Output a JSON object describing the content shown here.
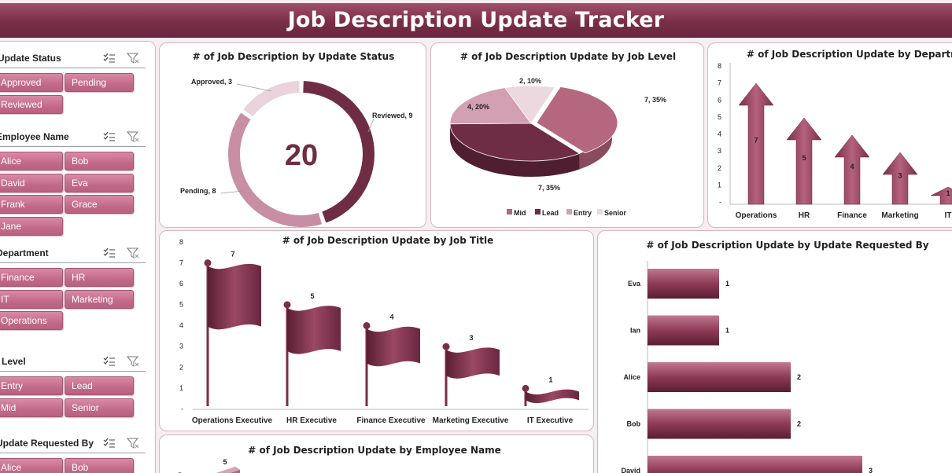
{
  "title": "Job Description Update Tracker",
  "slicers": [
    {
      "label": "Update Status",
      "items": [
        "Approved",
        "Pending",
        "Reviewed"
      ]
    },
    {
      "label": "Employee Name",
      "items": [
        "Alice",
        "Bob",
        "David",
        "Eva",
        "Frank",
        "Grace",
        "Jane"
      ]
    },
    {
      "label": "Department",
      "items": [
        "Finance",
        "HR",
        "IT",
        "Marketing",
        "Operations"
      ]
    },
    {
      "label": "Level",
      "items": [
        "Entry",
        "Lead",
        "Mid",
        "Senior"
      ]
    },
    {
      "label": "Update Requested By",
      "items": [
        "Alice",
        "Bob"
      ]
    }
  ],
  "chart_data": [
    {
      "id": "status",
      "type": "pie",
      "title": "# of Job Description by Update Status",
      "center_value": "20",
      "categories": [
        "Reviewed",
        "Pending",
        "Approved"
      ],
      "values": [
        9,
        8,
        3
      ],
      "labels": [
        "Reviewed, 9",
        "Pending, 8",
        "Approved, 3"
      ],
      "colors": [
        "#6e2d44",
        "#c88ea4",
        "#ead3dc"
      ]
    },
    {
      "id": "level",
      "type": "pie",
      "title": "# of Job Description Update by Job Level",
      "categories": [
        "Mid",
        "Lead",
        "Entry",
        "Senior"
      ],
      "values": [
        7,
        7,
        4,
        2
      ],
      "labels": [
        "7, 35%",
        "7, 35%",
        "4, 20%",
        "2, 10%"
      ],
      "legend": [
        "Mid",
        "Lead",
        "Entry",
        "Senior"
      ],
      "colors": [
        "#b5677f",
        "#6e2d44",
        "#d39fb2",
        "#ecd9e0"
      ]
    },
    {
      "id": "department",
      "type": "bar",
      "title": "# of Job Description Update by Department",
      "categories": [
        "Operations",
        "HR",
        "Finance",
        "Marketing",
        "IT"
      ],
      "values": [
        7,
        5,
        4,
        3,
        1
      ],
      "yticks": [
        "8",
        "7",
        "6",
        "5",
        "4",
        "3",
        "2",
        "1",
        "-"
      ],
      "ylim": [
        0,
        8
      ]
    },
    {
      "id": "jobtitle",
      "type": "bar",
      "title": "# of Job Description Update by Job Title",
      "categories": [
        "Operations Executive",
        "HR Executive",
        "Finance Executive",
        "Marketing Executive",
        "IT Executive"
      ],
      "values": [
        7,
        5,
        4,
        3,
        1
      ],
      "yticks": [
        "8",
        "7",
        "6",
        "5",
        "4",
        "3",
        "2",
        "1",
        "-"
      ],
      "ylim": [
        0,
        8
      ]
    },
    {
      "id": "requested",
      "type": "bar",
      "title": "# of Job Description Update by Update Requested By",
      "categories": [
        "Eva",
        "Ian",
        "Alice",
        "Bob",
        "David"
      ],
      "values": [
        1,
        1,
        2,
        2,
        3
      ]
    },
    {
      "id": "employee",
      "type": "bar",
      "title": "# of Job Description Update by Employee Name",
      "visible_labels": [
        "5"
      ],
      "ytick_top": "5"
    }
  ],
  "icons": {
    "multiselect": "multi-select-icon",
    "clear": "clear-filter-icon"
  },
  "colors": {
    "accent": "#7a2e47",
    "chip": "#c26a89",
    "bar": "#8e3a57"
  }
}
